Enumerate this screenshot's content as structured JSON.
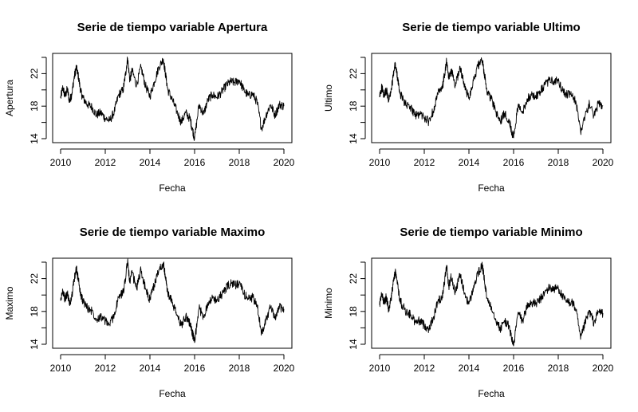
{
  "figure": {
    "background": "#ffffff",
    "line_color": "#000000"
  },
  "chart_data": [
    {
      "type": "line",
      "title": "Serie de tiempo variable Apertura",
      "xlabel": "Fecha",
      "ylabel": "Apertura",
      "xlim": [
        2010,
        2020
      ],
      "ylim": [
        14,
        24
      ],
      "xticks": [
        "2010",
        "2012",
        "2014",
        "2016",
        "2018",
        "2020"
      ],
      "yticks": [
        "14",
        "18",
        "22"
      ],
      "series": [
        {
          "x": [
            2010.0,
            2010.1,
            2010.2,
            2010.3,
            2010.4,
            2010.5,
            2010.6,
            2010.7,
            2010.8,
            2010.9,
            2011.0,
            2011.2,
            2011.4,
            2011.6,
            2011.8,
            2012.0,
            2012.2,
            2012.4,
            2012.6,
            2012.8,
            2012.9,
            2013.0,
            2013.1,
            2013.2,
            2013.4,
            2013.6,
            2013.8,
            2014.0,
            2014.2,
            2014.4,
            2014.6,
            2014.7,
            2014.8,
            2015.0,
            2015.2,
            2015.4,
            2015.6,
            2015.8,
            2015.9,
            2016.0,
            2016.2,
            2016.4,
            2016.6,
            2016.8,
            2017.0,
            2017.2,
            2017.4,
            2017.6,
            2017.8,
            2018.0,
            2018.2,
            2018.4,
            2018.6,
            2018.8,
            2019.0,
            2019.2,
            2019.4,
            2019.6,
            2019.8,
            2020.0
          ],
          "y": [
            19.0,
            20.3,
            19.2,
            20.1,
            18.6,
            19.5,
            21.4,
            22.8,
            21.6,
            19.8,
            19.0,
            18.2,
            17.9,
            16.9,
            17.2,
            16.5,
            16.2,
            17.3,
            19.4,
            20.0,
            21.8,
            23.9,
            21.2,
            22.4,
            20.6,
            22.8,
            20.5,
            19.2,
            21.0,
            22.8,
            23.8,
            21.9,
            20.0,
            18.8,
            17.4,
            16.0,
            17.2,
            16.4,
            15.2,
            14.0,
            18.2,
            17.0,
            18.8,
            19.4,
            19.1,
            19.7,
            20.5,
            21.0,
            20.9,
            21.2,
            20.0,
            19.3,
            19.5,
            18.5,
            15.2,
            16.9,
            18.2,
            16.9,
            18.2,
            18.0
          ]
        }
      ]
    },
    {
      "type": "line",
      "title": "Serie de tiempo variable Ultimo",
      "xlabel": "Fecha",
      "ylabel": "Ultimo",
      "xlim": [
        2010,
        2020
      ],
      "ylim": [
        14,
        24
      ],
      "xticks": [
        "2010",
        "2012",
        "2014",
        "2016",
        "2018",
        "2020"
      ],
      "yticks": [
        "14",
        "18",
        "22"
      ],
      "series": [
        {
          "x": [
            2010.0,
            2010.1,
            2010.2,
            2010.3,
            2010.4,
            2010.5,
            2010.6,
            2010.7,
            2010.8,
            2010.9,
            2011.0,
            2011.2,
            2011.4,
            2011.6,
            2011.8,
            2012.0,
            2012.2,
            2012.4,
            2012.6,
            2012.8,
            2012.9,
            2013.0,
            2013.1,
            2013.2,
            2013.4,
            2013.6,
            2013.8,
            2014.0,
            2014.2,
            2014.4,
            2014.6,
            2014.7,
            2014.8,
            2015.0,
            2015.2,
            2015.4,
            2015.6,
            2015.8,
            2015.9,
            2016.0,
            2016.2,
            2016.4,
            2016.6,
            2016.8,
            2017.0,
            2017.2,
            2017.4,
            2017.6,
            2017.8,
            2018.0,
            2018.2,
            2018.4,
            2018.6,
            2018.8,
            2019.0,
            2019.2,
            2019.4,
            2019.6,
            2019.8,
            2020.0
          ],
          "y": [
            19.1,
            20.4,
            19.1,
            20.0,
            18.7,
            19.6,
            21.5,
            23.2,
            21.5,
            19.7,
            19.1,
            18.1,
            17.8,
            16.8,
            17.1,
            16.6,
            16.1,
            17.4,
            19.5,
            20.1,
            21.7,
            23.5,
            21.3,
            22.5,
            20.5,
            22.9,
            20.4,
            19.1,
            21.1,
            22.9,
            23.6,
            21.8,
            19.9,
            18.9,
            17.3,
            16.1,
            17.1,
            16.3,
            15.1,
            14.1,
            18.1,
            17.1,
            18.9,
            19.3,
            19.2,
            19.8,
            20.6,
            21.2,
            21.0,
            21.1,
            19.9,
            19.4,
            19.4,
            18.4,
            14.9,
            16.8,
            18.3,
            16.8,
            18.3,
            18.1
          ]
        }
      ]
    },
    {
      "type": "line",
      "title": "Serie de tiempo variable Maximo",
      "xlabel": "Fecha",
      "ylabel": "Maximo",
      "xlim": [
        2010,
        2020
      ],
      "ylim": [
        14,
        24
      ],
      "xticks": [
        "2010",
        "2012",
        "2014",
        "2016",
        "2018",
        "2020"
      ],
      "yticks": [
        "14",
        "18",
        "22"
      ],
      "series": [
        {
          "x": [
            2010.0,
            2010.1,
            2010.2,
            2010.3,
            2010.4,
            2010.5,
            2010.6,
            2010.7,
            2010.8,
            2010.9,
            2011.0,
            2011.2,
            2011.4,
            2011.6,
            2011.8,
            2012.0,
            2012.2,
            2012.4,
            2012.6,
            2012.8,
            2012.9,
            2013.0,
            2013.1,
            2013.2,
            2013.4,
            2013.6,
            2013.8,
            2014.0,
            2014.2,
            2014.4,
            2014.6,
            2014.7,
            2014.8,
            2015.0,
            2015.2,
            2015.4,
            2015.6,
            2015.8,
            2015.9,
            2016.0,
            2016.2,
            2016.4,
            2016.6,
            2016.8,
            2017.0,
            2017.2,
            2017.4,
            2017.6,
            2017.8,
            2018.0,
            2018.2,
            2018.4,
            2018.6,
            2018.8,
            2019.0,
            2019.2,
            2019.4,
            2019.6,
            2019.8,
            2020.0
          ],
          "y": [
            19.3,
            20.6,
            19.4,
            20.3,
            18.9,
            19.8,
            21.7,
            23.3,
            21.8,
            20.0,
            19.3,
            18.4,
            18.1,
            17.1,
            17.4,
            16.8,
            16.4,
            17.6,
            19.7,
            20.3,
            22.0,
            24.2,
            21.5,
            22.7,
            20.8,
            23.1,
            20.7,
            19.4,
            21.3,
            23.1,
            23.9,
            22.1,
            20.2,
            19.1,
            17.6,
            16.3,
            17.4,
            16.6,
            15.4,
            14.2,
            18.4,
            17.3,
            19.1,
            19.6,
            19.4,
            20.0,
            20.8,
            21.4,
            21.2,
            21.4,
            20.2,
            19.6,
            19.7,
            18.7,
            15.3,
            17.1,
            18.5,
            17.1,
            18.5,
            18.3
          ]
        }
      ]
    },
    {
      "type": "line",
      "title": "Serie de tiempo variable Minimo",
      "xlabel": "Fecha",
      "ylabel": "Minimo",
      "xlim": [
        2010,
        2020
      ],
      "ylim": [
        14,
        24
      ],
      "xticks": [
        "2010",
        "2012",
        "2014",
        "2016",
        "2018",
        "2020"
      ],
      "yticks": [
        "14",
        "18",
        "22"
      ],
      "series": [
        {
          "x": [
            2010.0,
            2010.1,
            2010.2,
            2010.3,
            2010.4,
            2010.5,
            2010.6,
            2010.7,
            2010.8,
            2010.9,
            2011.0,
            2011.2,
            2011.4,
            2011.6,
            2011.8,
            2012.0,
            2012.2,
            2012.4,
            2012.6,
            2012.8,
            2012.9,
            2013.0,
            2013.1,
            2013.2,
            2013.4,
            2013.6,
            2013.8,
            2014.0,
            2014.2,
            2014.4,
            2014.6,
            2014.7,
            2014.8,
            2015.0,
            2015.2,
            2015.4,
            2015.6,
            2015.8,
            2015.9,
            2016.0,
            2016.2,
            2016.4,
            2016.6,
            2016.8,
            2017.0,
            2017.2,
            2017.4,
            2017.6,
            2017.8,
            2018.0,
            2018.2,
            2018.4,
            2018.6,
            2018.8,
            2019.0,
            2019.2,
            2019.4,
            2019.6,
            2019.8,
            2020.0
          ],
          "y": [
            18.8,
            20.1,
            18.9,
            19.8,
            18.3,
            19.3,
            21.2,
            22.9,
            21.3,
            19.5,
            18.8,
            17.9,
            17.6,
            16.6,
            16.9,
            16.3,
            15.9,
            17.1,
            19.2,
            19.8,
            21.5,
            23.6,
            21.0,
            22.2,
            20.3,
            22.6,
            20.2,
            18.9,
            20.8,
            22.6,
            23.6,
            21.6,
            19.7,
            18.6,
            17.1,
            15.8,
            16.9,
            16.1,
            14.9,
            13.8,
            17.9,
            16.8,
            18.6,
            19.1,
            18.9,
            19.5,
            20.3,
            20.9,
            20.7,
            20.9,
            19.7,
            19.1,
            19.2,
            18.2,
            14.6,
            16.6,
            18.0,
            16.6,
            18.0,
            17.8
          ]
        }
      ]
    }
  ]
}
